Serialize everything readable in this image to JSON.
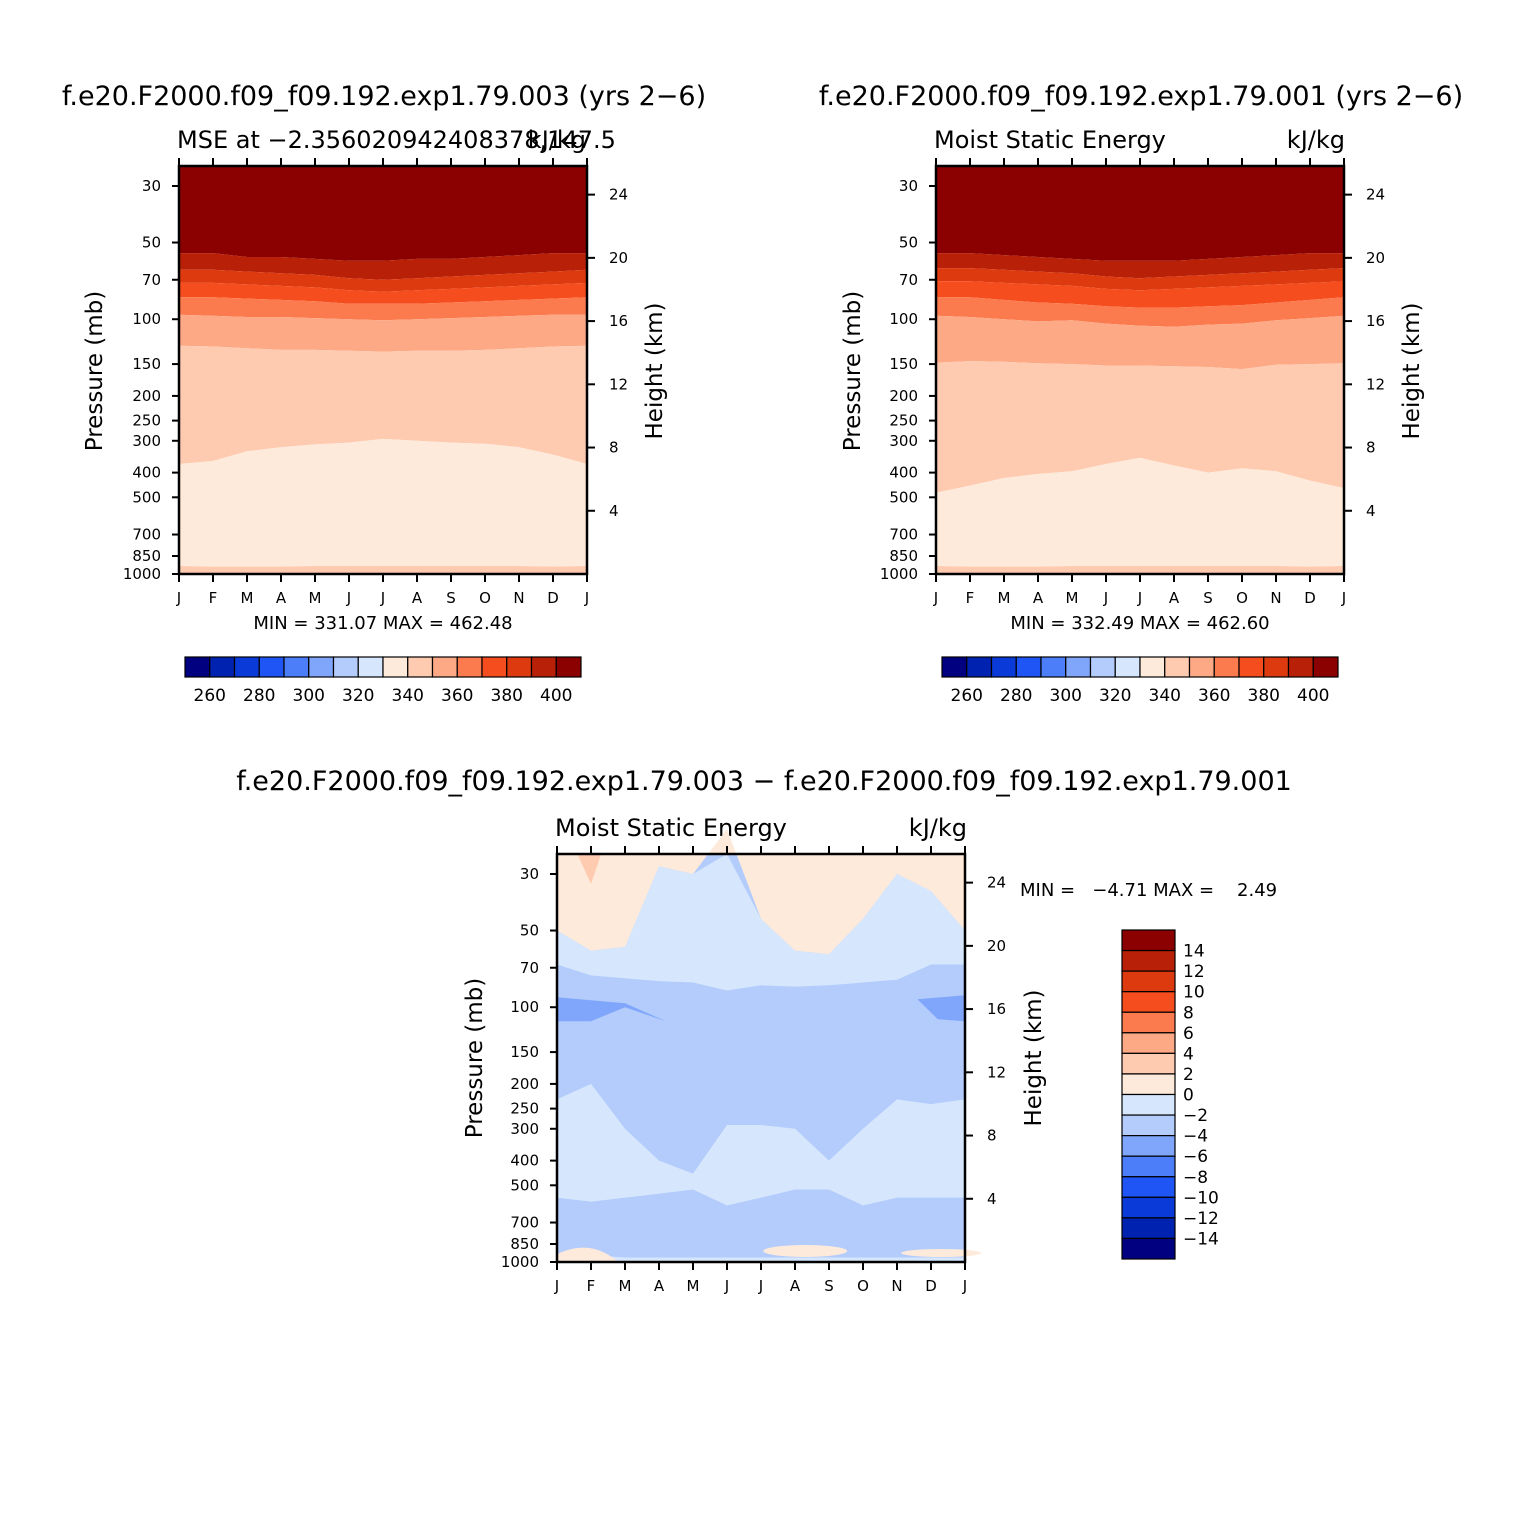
{
  "palette": [
    "#000080",
    "#0022b0",
    "#0a3ad8",
    "#1f55f5",
    "#4b7ef8",
    "#7fa6fa",
    "#b3ccfc",
    "#d6e7fd",
    "#feeadb",
    "#fecbb0",
    "#fda985",
    "#fb7a4e",
    "#f54d1e",
    "#de3a10",
    "#b82008",
    "#8b0000"
  ],
  "panels": {
    "left": {
      "title": "f.e20.F2000.f09_f09.192.exp1.79.003 (yrs 2−6)",
      "subtitle_left": "MSE at −2.356020942408378,147.5",
      "subtitle_right": "kJ/kg",
      "minmax": "MIN = 331.07 MAX = 462.48"
    },
    "right": {
      "title": "f.e20.F2000.f09_f09.192.exp1.79.001 (yrs 2−6)",
      "subtitle_left": "Moist Static Energy",
      "subtitle_right": "kJ/kg",
      "minmax": "MIN = 332.49 MAX = 462.60"
    },
    "diff": {
      "title": "f.e20.F2000.f09_f09.192.exp1.79.003 − f.e20.F2000.f09_f09.192.exp1.79.001",
      "subtitle_left": "Moist Static Energy",
      "subtitle_right": "kJ/kg",
      "minmax": "MIN =   −4.71 MAX =    2.49"
    }
  },
  "chart_data": [
    {
      "type": "heatmap",
      "subtype": "filled-contour",
      "title": "f.e20.F2000.f09_f09.192.exp1.79.003 (yrs 2−6)",
      "subtitle": "MSE at −2.356020942408378,147.5",
      "units": "kJ/kg",
      "xlabel": "",
      "ylabel": "Pressure (mb)",
      "ylabel_right": "Height (km)",
      "x_ticks": [
        "J",
        "F",
        "M",
        "A",
        "M",
        "J",
        "J",
        "A",
        "S",
        "O",
        "N",
        "D",
        "J"
      ],
      "y_ticks": [
        "30",
        "50",
        "70",
        "100",
        "150",
        "200",
        "250",
        "300",
        "400",
        "500",
        "700",
        "850",
        "1000"
      ],
      "y_right_ticks": [
        "4",
        "8",
        "12",
        "16",
        "20",
        "24"
      ],
      "y_scale": "log-pressure",
      "ylim_mb": [
        1000,
        20
      ],
      "contour_levels": [
        260,
        270,
        280,
        290,
        300,
        310,
        320,
        330,
        340,
        350,
        360,
        370,
        380,
        390,
        400
      ],
      "colorbar_labels": [
        "260",
        "280",
        "300",
        "320",
        "340",
        "360",
        "380",
        "400"
      ],
      "min": 331.07,
      "max": 462.48,
      "level_boundaries_mb": {
        "400": [
          55,
          55,
          57,
          57,
          58,
          59,
          59,
          58,
          58,
          57,
          56,
          55,
          55
        ],
        "390": [
          64,
          64,
          65,
          66,
          67,
          69,
          70,
          69,
          68,
          67,
          66,
          65,
          64
        ],
        "380": [
          72,
          72,
          73,
          74,
          75,
          77,
          78,
          77,
          76,
          75,
          74,
          73,
          72
        ],
        "370": [
          82,
          82,
          83,
          84,
          85,
          87,
          87,
          87,
          86,
          85,
          84,
          83,
          82
        ],
        "360": [
          96,
          97,
          98,
          98,
          99,
          100,
          101,
          100,
          99,
          98,
          97,
          96,
          96
        ],
        "350": [
          127,
          128,
          130,
          132,
          132,
          133,
          134,
          133,
          133,
          132,
          130,
          128,
          127
        ],
        "340": [
          370,
          360,
          330,
          318,
          310,
          305,
          295,
          300,
          305,
          308,
          318,
          340,
          370
        ],
        "330": [
          930,
          935,
          935,
          935,
          930,
          930,
          930,
          930,
          930,
          930,
          930,
          935,
          930
        ]
      }
    },
    {
      "type": "heatmap",
      "subtype": "filled-contour",
      "title": "f.e20.F2000.f09_f09.192.exp1.79.001 (yrs 2−6)",
      "subtitle": "Moist Static Energy",
      "units": "kJ/kg",
      "xlabel": "",
      "ylabel": "Pressure (mb)",
      "ylabel_right": "Height (km)",
      "x_ticks": [
        "J",
        "F",
        "M",
        "A",
        "M",
        "J",
        "J",
        "A",
        "S",
        "O",
        "N",
        "D",
        "J"
      ],
      "y_ticks": [
        "30",
        "50",
        "70",
        "100",
        "150",
        "200",
        "250",
        "300",
        "400",
        "500",
        "700",
        "850",
        "1000"
      ],
      "y_right_ticks": [
        "4",
        "8",
        "12",
        "16",
        "20",
        "24"
      ],
      "y_scale": "log-pressure",
      "ylim_mb": [
        1000,
        20
      ],
      "contour_levels": [
        260,
        270,
        280,
        290,
        300,
        310,
        320,
        330,
        340,
        350,
        360,
        370,
        380,
        390,
        400
      ],
      "colorbar_labels": [
        "260",
        "280",
        "300",
        "320",
        "340",
        "360",
        "380",
        "400"
      ],
      "min": 332.49,
      "max": 462.6,
      "level_boundaries_mb": {
        "400": [
          55,
          55,
          56,
          57,
          58,
          59,
          59,
          59,
          58,
          57,
          56,
          55,
          55
        ],
        "390": [
          63,
          63,
          64,
          65,
          66,
          68,
          69,
          68,
          67,
          66,
          65,
          64,
          63
        ],
        "380": [
          71,
          71,
          72,
          73,
          74,
          76,
          77,
          76,
          75,
          74,
          73,
          72,
          71
        ],
        "370": [
          82,
          82,
          84,
          86,
          87,
          89,
          90,
          90,
          89,
          88,
          86,
          84,
          82
        ],
        "360": [
          97,
          98,
          100,
          102,
          101,
          104,
          106,
          107,
          105,
          104,
          101,
          99,
          97
        ],
        "350": [
          148,
          146,
          147,
          149,
          150,
          152,
          152,
          153,
          154,
          157,
          151,
          150,
          149
        ],
        "340": [
          480,
          450,
          420,
          405,
          395,
          370,
          350,
          375,
          400,
          385,
          395,
          430,
          460
        ],
        "330": [
          930,
          935,
          935,
          935,
          930,
          930,
          930,
          930,
          930,
          930,
          930,
          935,
          930
        ]
      }
    },
    {
      "type": "heatmap",
      "subtype": "filled-contour",
      "title": "f.e20.F2000.f09_f09.192.exp1.79.003 − f.e20.F2000.f09_f09.192.exp1.79.001",
      "subtitle": "Moist Static Energy",
      "units": "kJ/kg",
      "xlabel": "",
      "ylabel": "Pressure (mb)",
      "ylabel_right": "Height (km)",
      "x_ticks": [
        "J",
        "F",
        "M",
        "A",
        "M",
        "J",
        "J",
        "A",
        "S",
        "O",
        "N",
        "D",
        "J"
      ],
      "y_ticks": [
        "30",
        "50",
        "70",
        "100",
        "150",
        "200",
        "250",
        "300",
        "400",
        "500",
        "700",
        "850",
        "1000"
      ],
      "y_right_ticks": [
        "4",
        "8",
        "12",
        "16",
        "20",
        "24"
      ],
      "y_scale": "log-pressure",
      "ylim_mb": [
        1000,
        20
      ],
      "contour_levels": [
        -14,
        -12,
        -10,
        -8,
        -6,
        -4,
        -2,
        0,
        2,
        4,
        6,
        8,
        10,
        12,
        14
      ],
      "colorbar_labels": [
        "14",
        "12",
        "10",
        "8",
        "6",
        "4",
        "2",
        "0",
        "−2",
        "−4",
        "−6",
        "−8",
        "−10",
        "−12",
        "−14"
      ],
      "min": -4.71,
      "max": 2.49,
      "level_boundaries_mb": {
        "0": [
          50,
          60,
          58,
          28,
          30,
          20,
          45,
          60,
          62,
          45,
          30,
          35,
          50
        ],
        "-2": [
          68,
          75,
          77,
          79,
          80,
          86,
          82,
          83,
          82,
          80,
          78,
          68,
          68
        ],
        "-4": [
          230,
          200,
          300,
          400,
          450,
          290,
          290,
          300,
          400,
          300,
          230,
          240,
          230
        ],
        "-4_lower": [
          560,
          580,
          560,
          540,
          520,
          600,
          560,
          520,
          520,
          600,
          560,
          560,
          560
        ],
        "-2_lower": [
          960,
          940,
          960,
          960,
          960,
          960,
          960,
          960,
          960,
          960,
          960,
          960,
          960
        ]
      },
      "regions": [
        {
          "level_range": [
            -6,
            -4
          ],
          "near_mb": 100,
          "months": [
            "J",
            "F",
            "M",
            "A"
          ]
        },
        {
          "level_range": [
            -6,
            -4
          ],
          "near_mb": 100,
          "months": [
            "N",
            "D",
            "J"
          ]
        },
        {
          "level_range": [
            0,
            2
          ],
          "near_mb": 20,
          "months": [
            "J",
            "F"
          ]
        }
      ]
    }
  ]
}
